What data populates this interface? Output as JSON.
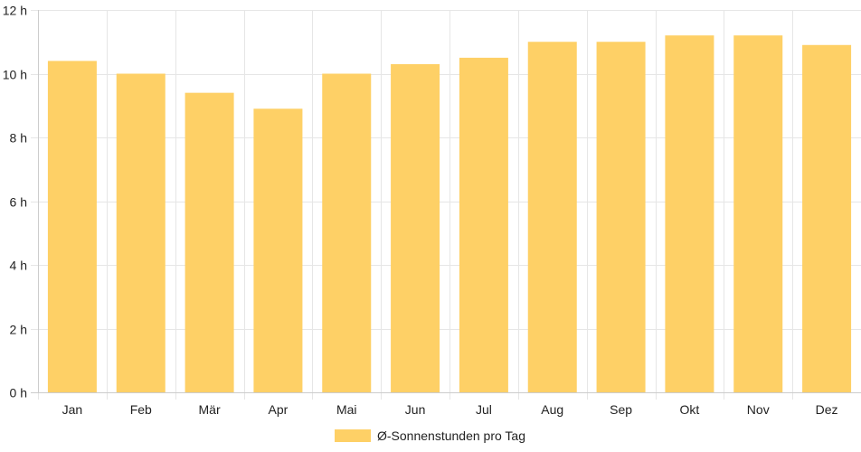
{
  "chart_data": {
    "type": "bar",
    "categories": [
      "Jan",
      "Feb",
      "Mär",
      "Apr",
      "Mai",
      "Jun",
      "Jul",
      "Aug",
      "Sep",
      "Okt",
      "Nov",
      "Dez"
    ],
    "series": [
      {
        "name": "Ø-Sonnenstunden pro Tag",
        "values": [
          10.4,
          10.0,
          9.4,
          8.9,
          10.0,
          10.3,
          10.5,
          11.0,
          11.0,
          11.2,
          11.2,
          10.9
        ],
        "color": "#fed066"
      }
    ],
    "y_ticks": [
      "0 h",
      "2 h",
      "4 h",
      "6 h",
      "8 h",
      "10 h",
      "12 h"
    ],
    "ylim": [
      0,
      12
    ],
    "y_step": 2,
    "grid": true,
    "legend_position": "bottom"
  }
}
